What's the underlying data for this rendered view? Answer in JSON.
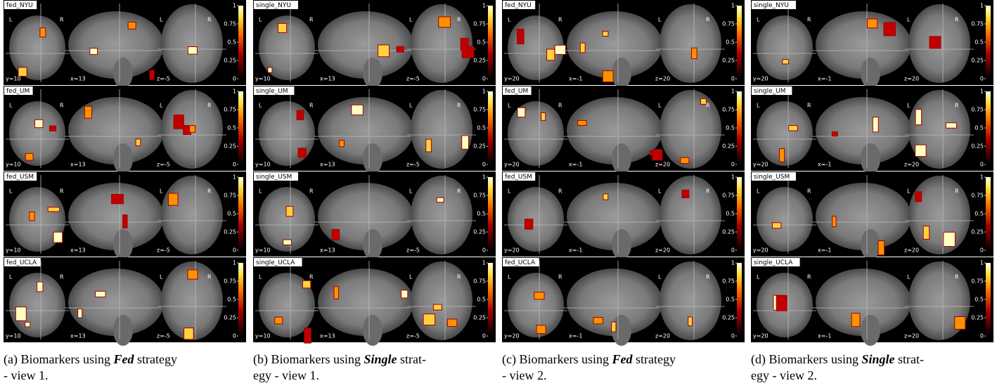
{
  "orientation_labels": [
    "L",
    "R"
  ],
  "colorbar_ticks": [
    0,
    0.25,
    0.5,
    0.75,
    1
  ],
  "panels": [
    {
      "rows": [
        {
          "title": "fed_NYU",
          "coords": [
            "y=10",
            "x=13",
            "z=-5"
          ]
        },
        {
          "title": "fed_UM",
          "coords": [
            "y=10",
            "x=13",
            "z=-5"
          ]
        },
        {
          "title": "fed_USM",
          "coords": [
            "y=10",
            "x=13",
            "z=-5"
          ]
        },
        {
          "title": "fed_UCLA",
          "coords": [
            "y=10",
            "x=13",
            "z=-5"
          ]
        }
      ],
      "caption": {
        "before": "(a) Biomarkers using ",
        "emphasis": "Fed",
        "after": " strategy",
        "line2": "- view 1."
      }
    },
    {
      "rows": [
        {
          "title": "single_NYU",
          "coords": [
            "y=10",
            "x=13",
            "z=-5"
          ]
        },
        {
          "title": "single_UM",
          "coords": [
            "y=10",
            "x=13",
            "z=-5"
          ]
        },
        {
          "title": "single_USM",
          "coords": [
            "y=10",
            "x=13",
            "z=-5"
          ]
        },
        {
          "title": "single_UCLA",
          "coords": [
            "y=10",
            "x=13",
            "z=-5"
          ]
        }
      ],
      "caption": {
        "before": "(b) Biomarkers using ",
        "emphasis": "Single",
        "after": " strat-",
        "line2": "egy - view 1."
      }
    },
    {
      "rows": [
        {
          "title": "fed_NYU",
          "coords": [
            "y=20",
            "x=-1",
            "z=20"
          ]
        },
        {
          "title": "fed_UM",
          "coords": [
            "y=20",
            "x=-1",
            "z=20"
          ]
        },
        {
          "title": "fed_USM",
          "coords": [
            "y=20",
            "x=-1",
            "z=20"
          ]
        },
        {
          "title": "fed_UCLA",
          "coords": [
            "y=20",
            "x=-1",
            "z=20"
          ]
        }
      ],
      "caption": {
        "before": "(c) Biomarkers using ",
        "emphasis": "Fed",
        "after": " strategy",
        "line2": "- view 2."
      }
    },
    {
      "rows": [
        {
          "title": "single_NYU",
          "coords": [
            "y=20",
            "x=-1",
            "z=20"
          ]
        },
        {
          "title": "single_UM",
          "coords": [
            "y=20",
            "x=-1",
            "z=20"
          ]
        },
        {
          "title": "single_USM",
          "coords": [
            "y=20",
            "x=-1",
            "z=20"
          ]
        },
        {
          "title": "single_UCLA",
          "coords": [
            "y=20",
            "x=-1",
            "z=20"
          ]
        }
      ],
      "caption": {
        "before": "(d) Biomarkers using ",
        "emphasis": "Single",
        "after": " strat-",
        "line2": "egy - view 2."
      }
    }
  ]
}
